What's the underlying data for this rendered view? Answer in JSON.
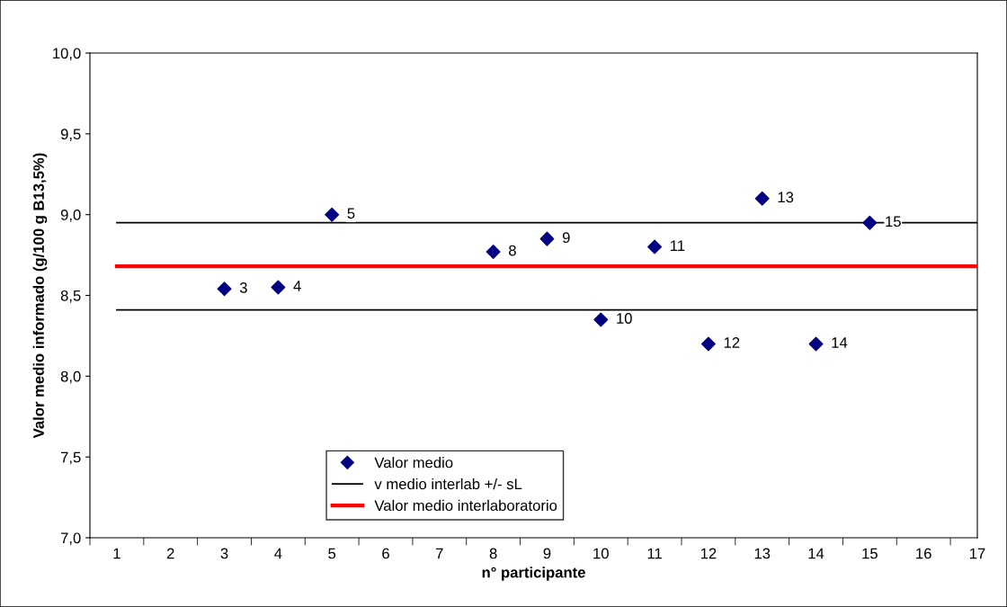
{
  "chart_data": {
    "type": "scatter",
    "xlabel": "n° participante",
    "ylabel": "Valor medio informado (g/100 g B13,5%)",
    "categories": [
      "1",
      "2",
      "3",
      "4",
      "5",
      "6",
      "7",
      "8",
      "9",
      "10",
      "11",
      "12",
      "13",
      "14",
      "15",
      "16",
      "17"
    ],
    "series": [
      {
        "name": "Valor medio",
        "color": "#000080",
        "marker": "diamond",
        "values": [
          null,
          null,
          8.54,
          8.55,
          9.0,
          null,
          null,
          8.77,
          8.85,
          8.35,
          8.8,
          8.2,
          9.1,
          8.2,
          8.95,
          null,
          null
        ]
      },
      {
        "name": "v medio interlab +/- sL",
        "type": "line",
        "color": "#000000",
        "values": [
          8.95,
          8.95,
          8.95,
          8.95,
          8.95,
          8.95,
          8.95,
          8.95,
          8.95,
          8.95,
          8.95,
          8.95,
          8.95,
          8.95,
          8.95,
          8.95,
          8.95
        ]
      },
      {
        "type": "line",
        "color": "#000000",
        "values": [
          8.41,
          8.41,
          8.41,
          8.41,
          8.41,
          8.41,
          8.41,
          8.41,
          8.41,
          8.41,
          8.41,
          8.41,
          8.41,
          8.41,
          8.41,
          8.41,
          8.41
        ]
      },
      {
        "name": "Valor medio interlaboratorio",
        "type": "line",
        "color": "#ff0000",
        "values": [
          8.68,
          8.68,
          8.68,
          8.68,
          8.68,
          8.68,
          8.68,
          8.68,
          8.68,
          8.68,
          8.68,
          8.68,
          8.68,
          8.68,
          8.68,
          8.68,
          8.68
        ]
      }
    ],
    "annotations": [
      {
        "text": "3",
        "x": "3",
        "y": 8.54
      },
      {
        "text": "4",
        "x": "4",
        "y": 8.55
      },
      {
        "text": "5",
        "x": "5",
        "y": 9.0
      },
      {
        "text": "8",
        "x": "8",
        "y": 8.77
      },
      {
        "text": "9",
        "x": "9",
        "y": 8.85
      },
      {
        "text": "10",
        "x": "10",
        "y": 8.35
      },
      {
        "text": "11",
        "x": "11",
        "y": 8.8
      },
      {
        "text": "12",
        "x": "12",
        "y": 8.2
      },
      {
        "text": "13",
        "x": "13",
        "y": 9.1
      },
      {
        "text": "14",
        "x": "14",
        "y": 8.2
      },
      {
        "text": "15",
        "x": "15",
        "y": 8.95
      }
    ],
    "ylim": [
      7.0,
      10.0
    ],
    "yticks": [
      {
        "value": 7.0,
        "label": "7,0"
      },
      {
        "value": 7.5,
        "label": "7,5"
      },
      {
        "value": 8.0,
        "label": "8,0"
      },
      {
        "value": 8.5,
        "label": "8,5"
      },
      {
        "value": 9.0,
        "label": "9,0"
      },
      {
        "value": 9.5,
        "label": "9,5"
      },
      {
        "value": 10.0,
        "label": "10,0"
      }
    ],
    "grid": false,
    "legend": "bottom"
  }
}
